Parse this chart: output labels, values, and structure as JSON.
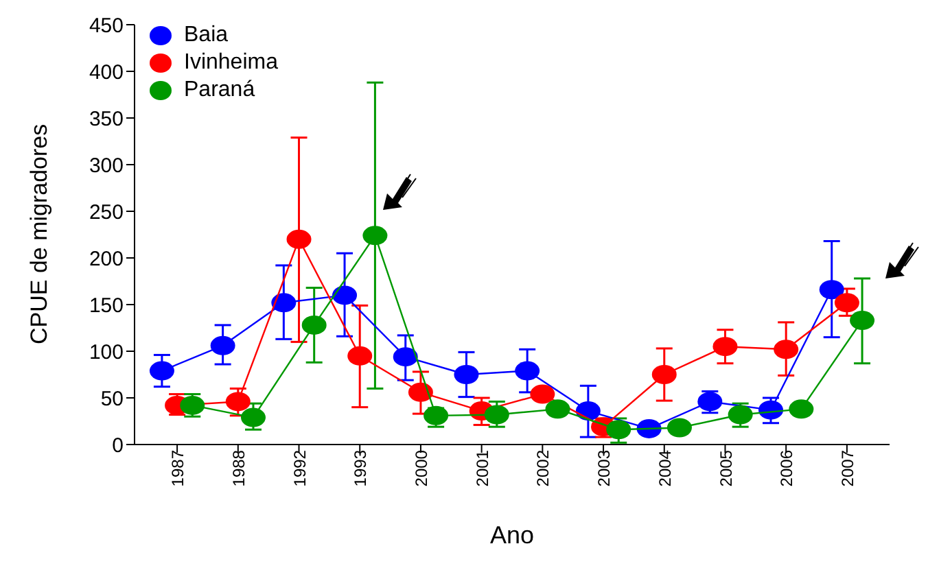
{
  "chart_data": {
    "type": "line",
    "xlabel": "Ano",
    "ylabel": "CPUE de migradores",
    "categories": [
      "1987",
      "1988",
      "1992",
      "1993",
      "2000",
      "2001",
      "2002",
      "2003",
      "2004",
      "2005",
      "2006",
      "2007"
    ],
    "ylim": [
      0,
      450
    ],
    "yticks": [
      0,
      50,
      100,
      150,
      200,
      250,
      300,
      350,
      400,
      450
    ],
    "legend": "top left",
    "marker": "circle",
    "grid": false,
    "series": [
      {
        "name": "Baia",
        "color": "#0000ff",
        "values": [
          79,
          106,
          152,
          160,
          94,
          75,
          79,
          36,
          17,
          46,
          37,
          166
        ],
        "errors": [
          [
            62,
            96
          ],
          [
            86,
            128
          ],
          [
            113,
            192
          ],
          [
            116,
            205
          ],
          [
            69,
            117
          ],
          [
            51,
            99
          ],
          [
            56,
            102
          ],
          [
            8,
            63
          ],
          null,
          [
            34,
            57
          ],
          [
            23,
            50
          ],
          [
            115,
            218
          ]
        ]
      },
      {
        "name": "Ivinheima",
        "color": "#ff0000",
        "values": [
          42,
          46,
          220,
          95,
          56,
          36,
          54,
          19,
          75,
          105,
          102,
          152
        ],
        "errors": [
          [
            32,
            54
          ],
          [
            31,
            60
          ],
          [
            110,
            329
          ],
          [
            40,
            149
          ],
          [
            33,
            78
          ],
          [
            21,
            50
          ],
          null,
          [
            8,
            28
          ],
          [
            47,
            103
          ],
          [
            87,
            123
          ],
          [
            74,
            131
          ],
          [
            138,
            167
          ]
        ]
      },
      {
        "name": "Paraná",
        "color": "#009900",
        "values": [
          42,
          29,
          128,
          224,
          31,
          32,
          38,
          16,
          18,
          32,
          38,
          133
        ],
        "errors": [
          [
            30,
            54
          ],
          [
            16,
            44
          ],
          [
            88,
            168
          ],
          [
            60,
            388
          ],
          [
            19,
            39
          ],
          [
            19,
            46
          ],
          null,
          [
            2,
            28
          ],
          null,
          [
            19,
            44
          ],
          null,
          [
            87,
            178
          ]
        ]
      }
    ]
  }
}
